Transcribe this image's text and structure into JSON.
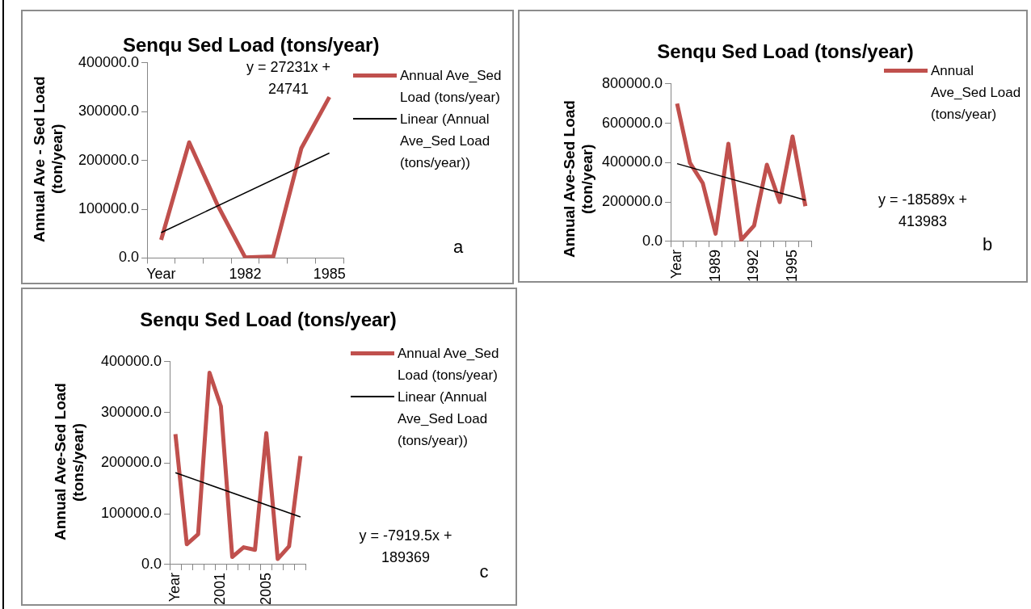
{
  "chart_data": [
    {
      "type": "line",
      "title": "Senqu Sed Load (tons/year)",
      "ylabel": "Annual Ave - Sed Load (ton/year)",
      "categories": [
        "Year",
        null,
        null,
        "1982",
        null,
        null,
        "1985"
      ],
      "series": [
        {
          "name": "Annual Ave_Sed Load (tons/year)",
          "color": "#c0504d",
          "values": [
            37000,
            237000,
            110000,
            1000,
            3000,
            225000,
            330000
          ]
        },
        {
          "name": "Linear (Annual Ave_Sed Load (tons/year))",
          "color": "#000000",
          "values": [
            52000,
            null,
            null,
            null,
            null,
            null,
            215000
          ]
        }
      ],
      "ylim": [
        0,
        400000
      ],
      "yticks": [
        {
          "value": 0,
          "label": "0.0"
        },
        {
          "value": 100000,
          "label": "100000.0"
        },
        {
          "value": 200000,
          "label": "200000.0"
        },
        {
          "value": 300000,
          "label": "300000.0"
        },
        {
          "value": 400000,
          "label": "400000.0"
        }
      ],
      "legend": "right",
      "annotations": [
        "y = 27231x + 24741",
        "a"
      ]
    },
    {
      "type": "line",
      "title": "Senqu Sed Load (tons/year)",
      "ylabel": "Annual Ave-Sed Load (ton/year)",
      "categories": [
        "Year",
        null,
        null,
        "1989",
        null,
        null,
        "1992",
        null,
        null,
        "1995",
        null
      ],
      "series": [
        {
          "name": "Annual Ave_Sed Load (tons/year)",
          "color": "#c0504d",
          "values": [
            700000,
            399000,
            296000,
            39000,
            496000,
            8000,
            80000,
            389000,
            200000,
            533000,
            179000
          ]
        },
        {
          "color": "#000000",
          "values": [
            395000,
            null,
            null,
            null,
            null,
            null,
            null,
            null,
            null,
            null,
            210000
          ]
        }
      ],
      "ylim": [
        0,
        800000
      ],
      "yticks": [
        {
          "value": 0,
          "label": "0.0"
        },
        {
          "value": 200000,
          "label": "200000.0"
        },
        {
          "value": 400000,
          "label": "400000.0"
        },
        {
          "value": 600000,
          "label": "600000.0"
        },
        {
          "value": 800000,
          "label": "800000.0"
        }
      ],
      "legend": "top right",
      "annotations": [
        "y = -18589x + 413983",
        "b"
      ]
    },
    {
      "type": "line",
      "title": "Senqu Sed Load (tons/year)",
      "ylabel": "Annual Ave-Sed Load (tons/year)",
      "categories": [
        "Year",
        null,
        null,
        null,
        "2001",
        null,
        null,
        null,
        "2005",
        null,
        null,
        null
      ],
      "series": [
        {
          "name": "Annual Ave_Sed Load (tons/year)",
          "color": "#c0504d",
          "values": [
            257000,
            40000,
            60000,
            378000,
            312000,
            15000,
            34000,
            29000,
            259000,
            11000,
            36000,
            214000
          ]
        },
        {
          "name": "Linear (Annual Ave_Sed Load (tons/year))",
          "color": "#000000",
          "values": [
            181000,
            null,
            null,
            null,
            null,
            null,
            null,
            null,
            null,
            null,
            null,
            94000
          ]
        }
      ],
      "ylim": [
        0,
        400000
      ],
      "yticks": [
        {
          "value": 0,
          "label": "0.0"
        },
        {
          "value": 100000,
          "label": "100000.0"
        },
        {
          "value": 200000,
          "label": "200000.0"
        },
        {
          "value": 300000,
          "label": "300000.0"
        },
        {
          "value": 400000,
          "label": "400000.0"
        }
      ],
      "legend": "right",
      "annotations": [
        "y = -7919.5x + 189369",
        "c"
      ]
    }
  ]
}
